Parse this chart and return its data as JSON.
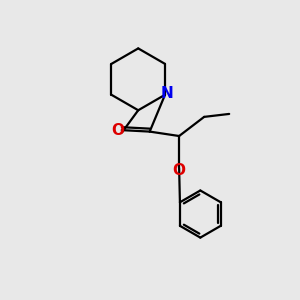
{
  "background_color": "#e8e8e8",
  "bond_color": "#000000",
  "N_color": "#0000ee",
  "O_color": "#dd0000",
  "font_size_atom": 10,
  "line_width": 1.6,
  "figsize": [
    3.0,
    3.0
  ],
  "dpi": 100,
  "xlim": [
    0,
    10
  ],
  "ylim": [
    0,
    10
  ]
}
